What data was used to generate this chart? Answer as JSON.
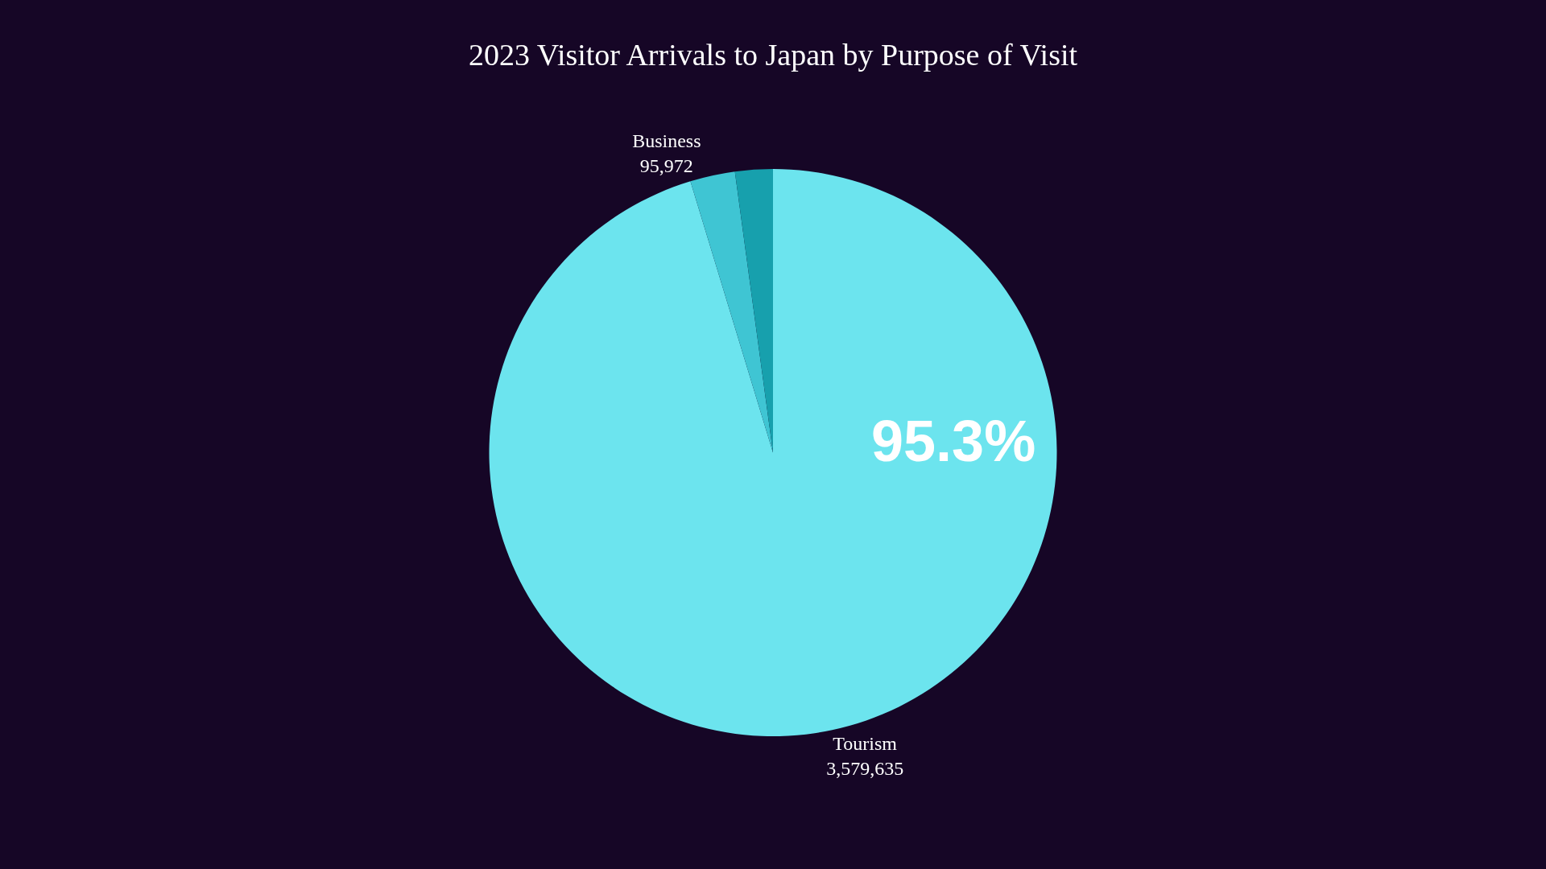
{
  "chart_data": {
    "type": "pie",
    "title": "2023 Visitor Arrivals to Japan by Purpose of Visit",
    "categories": [
      "Tourism",
      "Business",
      null
    ],
    "values": [
      3579635,
      95972,
      80568
    ],
    "value_labels": [
      "3,579,635",
      "95,972",
      null
    ],
    "colors": [
      "#6ce4ee",
      "#3fc5d3",
      "#17a0ad"
    ],
    "annotations": [
      "95.3%"
    ]
  }
}
